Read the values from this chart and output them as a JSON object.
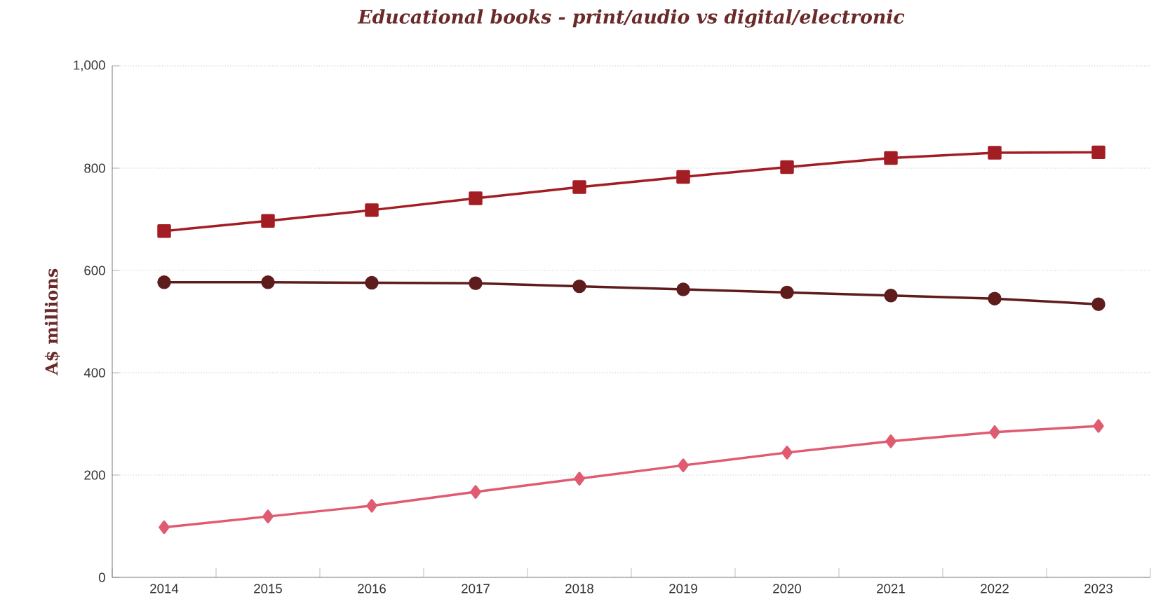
{
  "chart_data": {
    "type": "line",
    "title": "Educational books - print/audio vs digital/electronic",
    "ylabel": "A$ millions",
    "categories": [
      "2014",
      "2015",
      "2016",
      "2017",
      "2018",
      "2019",
      "2020",
      "2021",
      "2022",
      "2023"
    ],
    "series": [
      {
        "color": "#a31d24",
        "marker": "square",
        "values": [
          677,
          697,
          718,
          741,
          763,
          783,
          802,
          820,
          830,
          831
        ]
      },
      {
        "color": "#5e1c1c",
        "marker": "circle",
        "values": [
          577,
          577,
          576,
          575,
          569,
          563,
          557,
          551,
          545,
          534
        ]
      },
      {
        "color": "#e05a70",
        "marker": "diamond",
        "values": [
          98,
          119,
          140,
          167,
          193,
          219,
          244,
          266,
          284,
          296
        ]
      }
    ],
    "ylim": [
      0,
      1000
    ],
    "yticks": [
      0,
      200,
      400,
      600,
      800,
      {
        "value": 1000,
        "label": "1,000"
      }
    ],
    "grid": "y",
    "line_style": "solid"
  }
}
